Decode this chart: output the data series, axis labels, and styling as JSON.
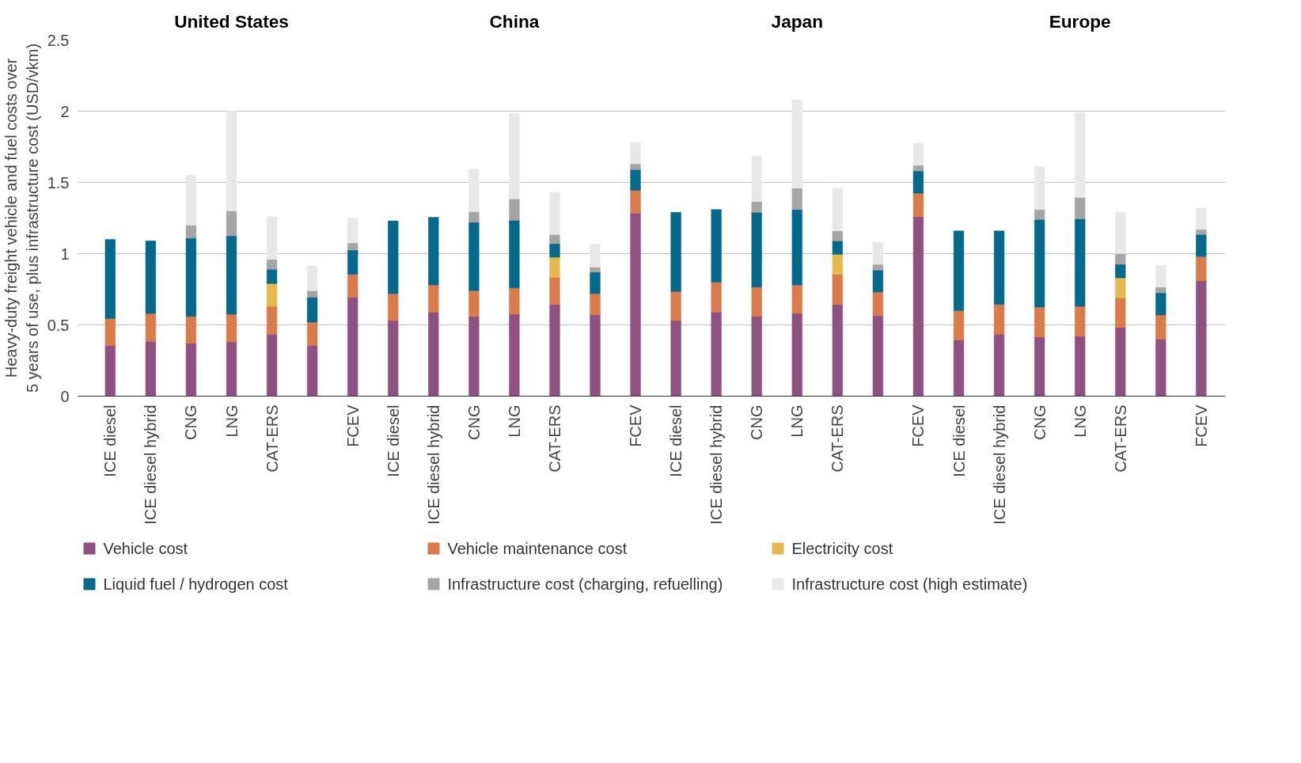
{
  "chart_data": {
    "type": "bar",
    "stacked": true,
    "ylabel": "Heavy-duty freight vehicle and fuel costs over\n5 years of use, plus infrastructure cost (USD/vkm)",
    "annotations": [
      "United States",
      "China",
      "Japan",
      "Europe"
    ],
    "categories": [
      "ICE diesel",
      "ICE diesel hybrid",
      "CNG",
      "LNG",
      "CAT-ERS",
      null,
      "FCEV",
      "ICE diesel",
      "ICE diesel hybrid",
      "CNG",
      "LNG",
      "CAT-ERS",
      null,
      "FCEV",
      "ICE diesel",
      "ICE diesel hybrid",
      "CNG",
      "LNG",
      "CAT-ERS",
      null,
      "FCEV",
      "ICE diesel",
      "ICE diesel hybrid",
      "CNG",
      "LNG",
      "CAT-ERS",
      null,
      "FCEV"
    ],
    "series": [
      {
        "name": "Vehicle cost",
        "color": "#8e5181",
        "values": [
          0.355,
          0.385,
          0.37,
          0.38,
          0.435,
          0.355,
          0.695,
          0.53,
          0.59,
          0.56,
          0.575,
          0.645,
          0.57,
          1.285,
          0.53,
          0.59,
          0.56,
          0.58,
          0.645,
          0.565,
          1.26,
          0.395,
          0.435,
          0.415,
          0.42,
          0.48,
          0.4,
          0.81
        ]
      },
      {
        "name": "Vehicle maintenance cost",
        "color": "#d97b4a",
        "values": [
          0.19,
          0.195,
          0.19,
          0.195,
          0.195,
          0.165,
          0.16,
          0.19,
          0.19,
          0.18,
          0.185,
          0.19,
          0.15,
          0.16,
          0.205,
          0.21,
          0.205,
          0.2,
          0.21,
          0.165,
          0.165,
          0.205,
          0.21,
          0.21,
          0.21,
          0.21,
          0.17,
          0.17
        ]
      },
      {
        "name": "Electricity cost",
        "color": "#e6b94c",
        "values": [
          null,
          null,
          null,
          null,
          0.16,
          null,
          null,
          null,
          null,
          null,
          null,
          0.14,
          null,
          null,
          null,
          null,
          null,
          null,
          0.14,
          null,
          null,
          null,
          null,
          null,
          null,
          0.14,
          null,
          null
        ]
      },
      {
        "name": "Liquid fuel / hydrogen cost",
        "color": "#05698c",
        "values": [
          0.555,
          0.51,
          0.55,
          0.55,
          0.1,
          0.175,
          0.17,
          0.51,
          0.475,
          0.48,
          0.475,
          0.095,
          0.15,
          0.145,
          0.555,
          0.51,
          0.525,
          0.53,
          0.095,
          0.155,
          0.155,
          0.56,
          0.515,
          0.615,
          0.615,
          0.095,
          0.155,
          0.155
        ]
      },
      {
        "name": "Infrastructure cost (charging, refuelling)",
        "color": "#a5a5a5",
        "values": [
          null,
          null,
          0.09,
          0.175,
          0.07,
          0.045,
          0.05,
          null,
          null,
          0.075,
          0.15,
          0.065,
          0.035,
          0.04,
          null,
          null,
          0.075,
          0.15,
          0.07,
          0.04,
          0.04,
          null,
          null,
          0.07,
          0.15,
          0.075,
          0.04,
          0.035
        ]
      },
      {
        "name": "Infrastructure cost (high estimate)",
        "color": "#e8e8e8",
        "values": [
          null,
          null,
          0.35,
          0.7,
          0.3,
          0.175,
          0.175,
          null,
          null,
          0.3,
          0.6,
          0.295,
          0.16,
          0.15,
          null,
          null,
          0.32,
          0.62,
          0.3,
          0.155,
          0.155,
          null,
          null,
          0.3,
          0.595,
          0.295,
          0.155,
          0.15
        ]
      }
    ],
    "ylim": [
      0,
      2.5
    ],
    "yticks": [
      0,
      0.5,
      1,
      1.5,
      2,
      2.5
    ],
    "grid": "y",
    "legend": "bottom"
  }
}
